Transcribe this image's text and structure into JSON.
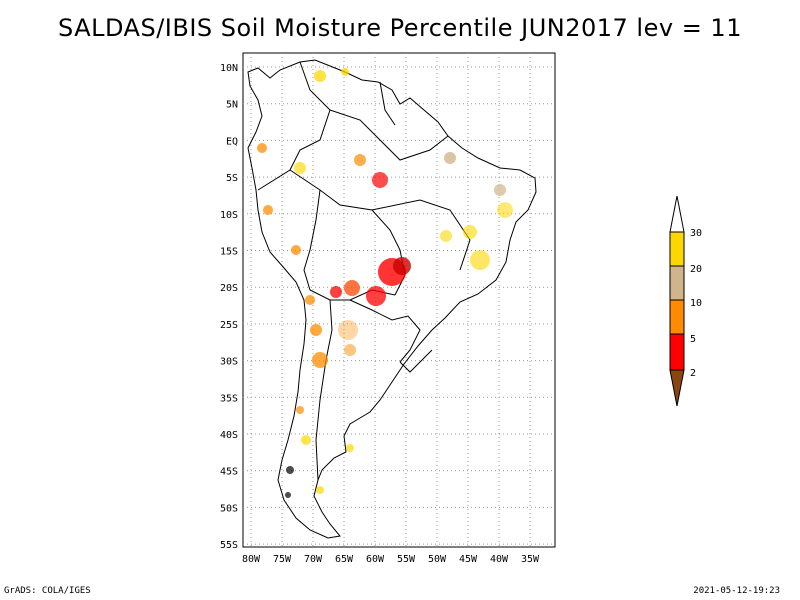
{
  "title": "SALDAS/IBIS Soil Moisture Percentile JUN2017 lev = 11",
  "map": {
    "lat_labels": [
      "10N",
      "5N",
      "EQ",
      "5S",
      "10S",
      "15S",
      "20S",
      "25S",
      "30S",
      "35S",
      "40S",
      "45S",
      "50S",
      "55S"
    ],
    "lon_labels": [
      "80W",
      "75W",
      "70W",
      "65W",
      "60W",
      "55W",
      "50W",
      "45W",
      "40W",
      "35W"
    ],
    "grid": "dotted",
    "region": "South America"
  },
  "colorbar": {
    "levels": [
      "2",
      "5",
      "10",
      "20",
      "30"
    ],
    "colors": [
      "#8b4513",
      "#ff0000",
      "#ff8c00",
      "#d2b48c",
      "#ffd700"
    ]
  },
  "footer": {
    "left": "GrADS: COLA/IGES",
    "right": "2021-05-12-19:23"
  }
}
